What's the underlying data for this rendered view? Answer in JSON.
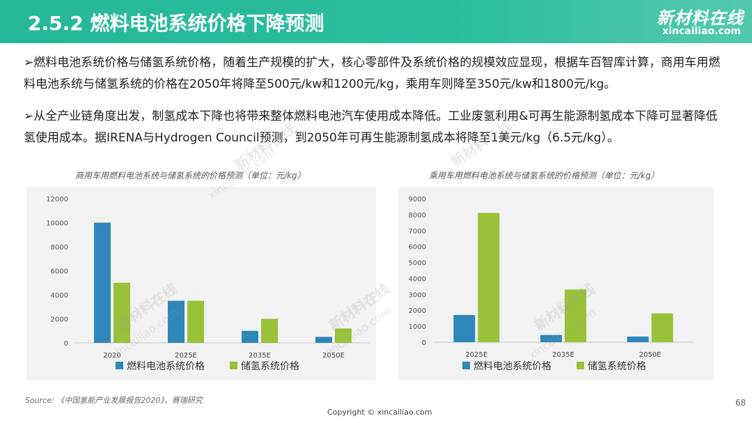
{
  "header": {
    "title": "2.5.2 燃料电池系统价格下降预测",
    "logo_name": "新材料在线",
    "logo_url": "xincailiao.com"
  },
  "bullets": [
    "➢燃料电池系统价格与储氢系统价格，随着生产规模的扩大，核心零部件及系统价格的规模效应显现，根据车百智库计算，商用车用燃料电池系统与储氢系统的价格在2050年将降至500元/kw和1200元/kg，乘用车则降至350元/kw和1800元/kg。",
    "➢从全产业链角度出发，制氢成本下降也将带来整体燃料电池汽车使用成本降低。工业废氢利用&可再生能源制氢成本下降可显著降低氢使用成本。据IRENA与Hydrogen Council预测，到2050年可再生能源制氢成本将降至1美元/kg（6.5元/kg）。"
  ],
  "colors": {
    "fuel_cell": "#2f86b8",
    "hydrogen_storage": "#99c13a",
    "header": "#2bbd9e"
  },
  "chart_data": [
    {
      "type": "bar",
      "title": "商用车用燃料电池系统与储氢系统的价格预测（单位：元/kg）",
      "categories": [
        "2020",
        "2025E",
        "2035E",
        "2050E"
      ],
      "series": [
        {
          "name": "燃料电池系统价格",
          "values": [
            10000,
            3500,
            1000,
            500
          ]
        },
        {
          "name": "储氢系统价格",
          "values": [
            5000,
            3500,
            2000,
            1200
          ]
        }
      ],
      "ylim": [
        0,
        12000
      ],
      "yticks": [
        0,
        2000,
        4000,
        6000,
        8000,
        10000,
        12000
      ],
      "grid": false,
      "legend": "bottom"
    },
    {
      "type": "bar",
      "title": "乘用车用燃料电池系统与储氢系统的价格预测（单位：元/kg）",
      "categories": [
        "2025E",
        "2035E",
        "2050E"
      ],
      "series": [
        {
          "name": "燃料电池系统价格",
          "values": [
            1700,
            450,
            350
          ]
        },
        {
          "name": "储氢系统价格",
          "values": [
            8100,
            3300,
            1800
          ]
        }
      ],
      "ylim": [
        0,
        9000
      ],
      "yticks": [
        0,
        1000,
        2000,
        3000,
        4000,
        5000,
        6000,
        7000,
        8000,
        9000
      ],
      "grid": false,
      "legend": "bottom"
    }
  ],
  "footer": {
    "source": "Source: 《中国氢能产业发展报告2020》，赛瑞研究",
    "copyright": "Copyright © xincailiao.com",
    "page": "68"
  },
  "watermark": {
    "name": "新材料在线",
    "url": "xincailiao.com"
  }
}
